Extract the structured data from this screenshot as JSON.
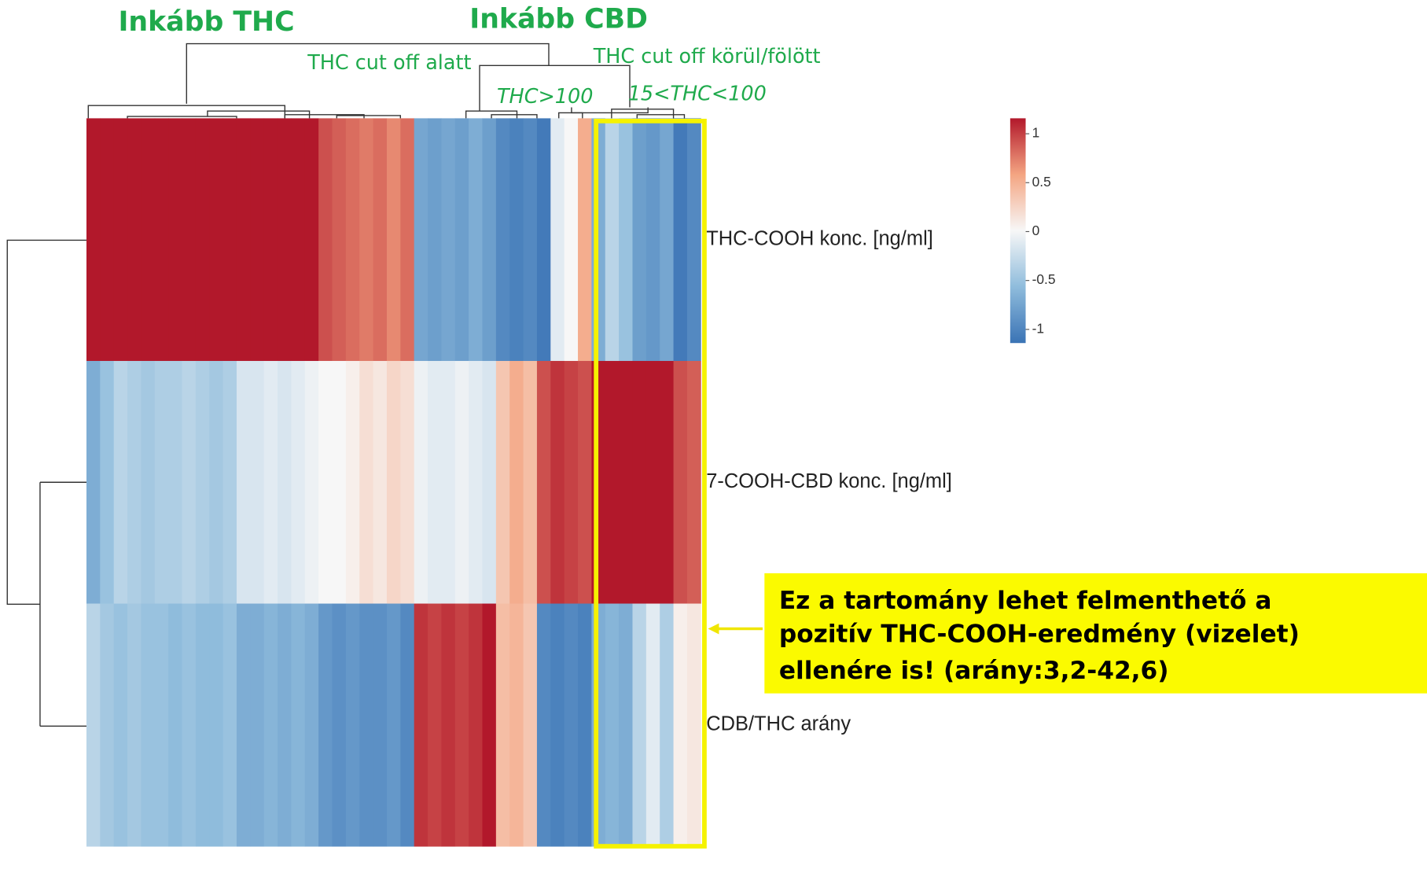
{
  "chart_data": {
    "type": "heatmap",
    "rows": [
      "THC-COOH konc. [ng/ml]",
      "7-COOH-CBD konc. [ng/ml]",
      "CDB/THC arány"
    ],
    "values": [
      [
        1.0,
        1.0,
        1.0,
        1.0,
        1.0,
        1.0,
        1.0,
        1.0,
        1.0,
        1.0,
        1.0,
        1.0,
        1.0,
        1.0,
        1.0,
        1.0,
        1.0,
        0.8,
        0.75,
        0.7,
        0.65,
        0.7,
        0.6,
        0.7,
        -0.65,
        -0.7,
        -0.65,
        -0.7,
        -0.6,
        -0.7,
        -0.85,
        -0.9,
        -0.85,
        -0.95,
        -0.1,
        0.0,
        0.45,
        -0.6,
        -0.3,
        -0.45,
        -0.7,
        -0.75,
        -0.65,
        -0.95,
        -0.85
      ],
      [
        -0.6,
        -0.45,
        -0.3,
        -0.35,
        -0.4,
        -0.35,
        -0.35,
        -0.3,
        -0.35,
        -0.4,
        -0.35,
        -0.15,
        -0.15,
        -0.1,
        -0.15,
        -0.1,
        -0.05,
        0.0,
        0.0,
        0.05,
        0.15,
        0.1,
        0.2,
        0.15,
        -0.05,
        -0.1,
        -0.1,
        -0.05,
        -0.1,
        -0.15,
        0.3,
        0.45,
        0.35,
        0.8,
        0.9,
        0.85,
        0.8,
        1.0,
        1.0,
        1.0,
        1.0,
        1.0,
        1.0,
        0.8,
        0.75
      ],
      [
        -0.3,
        -0.4,
        -0.45,
        -0.4,
        -0.45,
        -0.45,
        -0.5,
        -0.45,
        -0.5,
        -0.5,
        -0.45,
        -0.6,
        -0.6,
        -0.55,
        -0.6,
        -0.55,
        -0.6,
        -0.75,
        -0.8,
        -0.75,
        -0.8,
        -0.8,
        -0.75,
        -0.85,
        0.9,
        0.85,
        0.9,
        0.85,
        0.9,
        1.0,
        0.35,
        0.4,
        0.3,
        -0.85,
        -0.9,
        -0.85,
        -0.9,
        -0.6,
        -0.55,
        -0.6,
        -0.3,
        -0.1,
        -0.35,
        0.05,
        0.1
      ]
    ],
    "clim": [
      -1,
      1
    ],
    "cticks": [
      1,
      0.5,
      0,
      -0.5,
      -1
    ],
    "colors": [
      "#3a73b5",
      "#8fbcdc",
      "#f7f7f7",
      "#f4a582",
      "#b2182b"
    ],
    "annotations": [
      "Inkább THC",
      "Inkább CBD",
      "THC cut off alatt",
      "THC cut off körül/fölött",
      "THC>100",
      "15<THC<100"
    ],
    "callout": [
      "Ez a tartomány lehet felmenthető a",
      "pozitív THC-COOH-eredmény (vizelet)",
      "ellenére is! (arány:3,2-42,6)"
    ]
  }
}
